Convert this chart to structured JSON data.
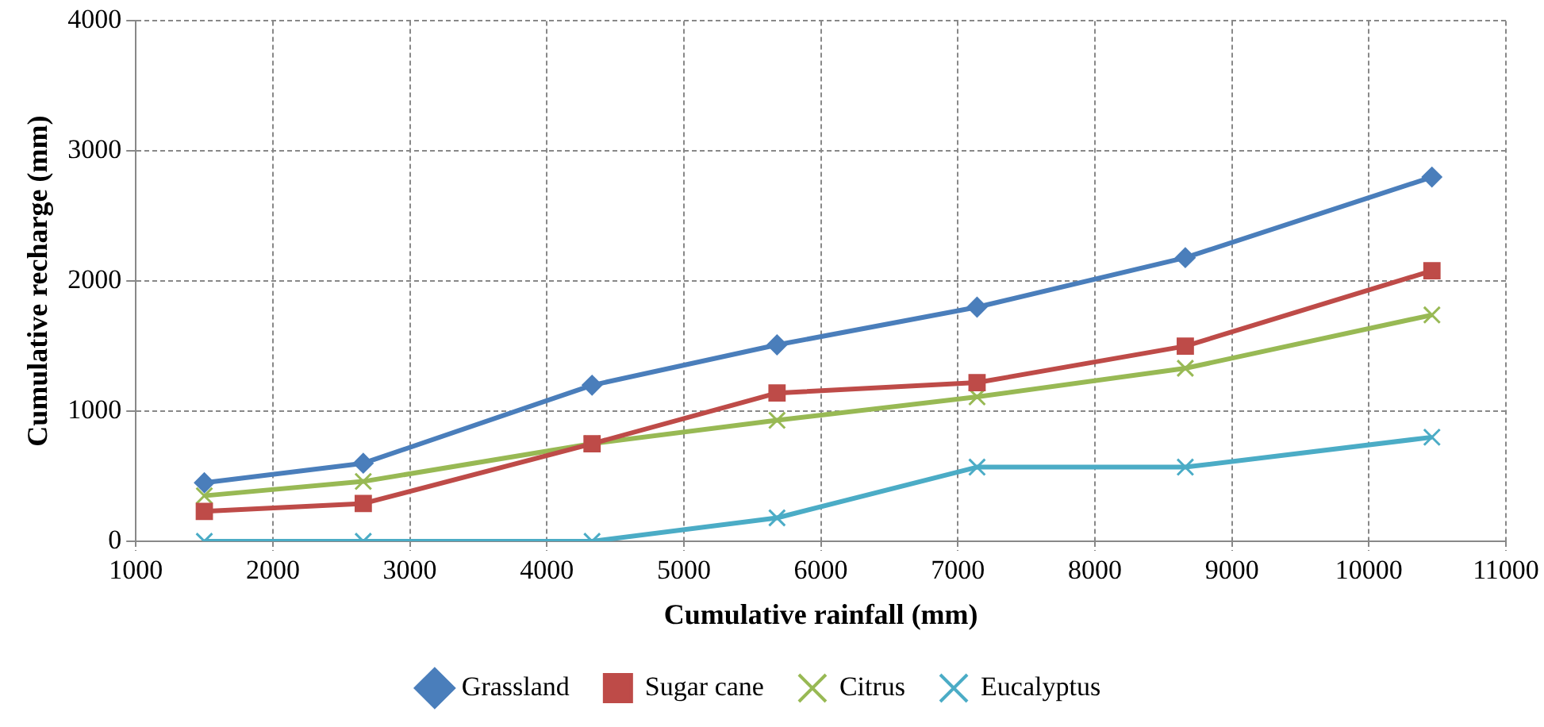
{
  "chart_data": {
    "type": "line",
    "xlabel": "Cumulative rainfall (mm)",
    "ylabel": "Cumulative recharge (mm)",
    "x": [
      1500,
      2660,
      4330,
      5680,
      7140,
      8660,
      10460
    ],
    "series": [
      {
        "name": "Grassland",
        "color": "#4a7ebb",
        "marker": "diamond",
        "values": [
          450,
          600,
          1200,
          1510,
          1800,
          2180,
          2800
        ]
      },
      {
        "name": "Sugar cane",
        "color": "#be4b48",
        "marker": "square",
        "values": [
          230,
          290,
          750,
          1140,
          1220,
          1500,
          2080
        ]
      },
      {
        "name": "Citrus",
        "color": "#98b954",
        "marker": "cross",
        "values": [
          350,
          460,
          750,
          930,
          1110,
          1330,
          1740
        ]
      },
      {
        "name": "Eucalyptus",
        "color": "#4bacc6",
        "marker": "cross",
        "values": [
          0,
          0,
          0,
          180,
          570,
          570,
          800
        ]
      }
    ],
    "xlim": [
      1000,
      11000
    ],
    "xticks": [
      1000,
      2000,
      3000,
      4000,
      5000,
      6000,
      7000,
      8000,
      9000,
      10000,
      11000
    ],
    "ylim": [
      0,
      4000
    ],
    "yticks": [
      0,
      1000,
      2000,
      3000,
      4000
    ],
    "grid": true,
    "legend": "bottom",
    "line_style": "solid"
  }
}
